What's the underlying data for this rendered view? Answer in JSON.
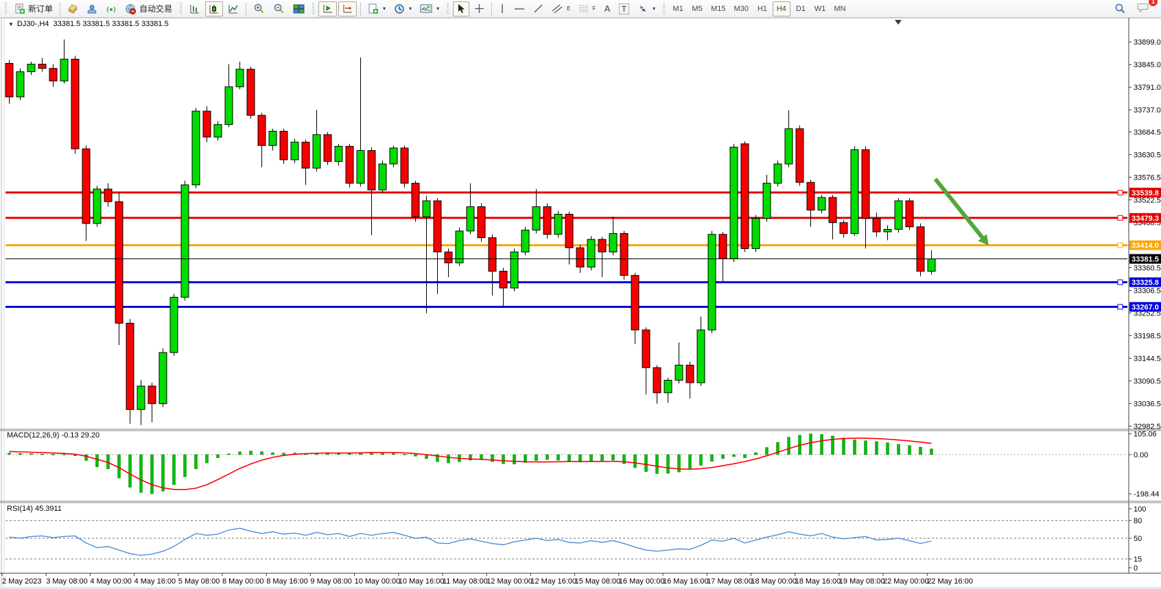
{
  "toolbar": {
    "new_order": "新订单",
    "autotrading": "自动交易",
    "timeframes": [
      "M1",
      "M5",
      "M15",
      "M30",
      "H1",
      "H4",
      "D1",
      "W1",
      "MN"
    ],
    "active_timeframe": "H4",
    "letters": {
      "channel": "E",
      "fibo": "F",
      "text": "A",
      "label": "T"
    },
    "notification_badge": "1"
  },
  "chart": {
    "menu_icon": "▼",
    "title": "DJ30-,H4  33381.5 33381.5 33381.5 33381.5"
  },
  "price_axis": {
    "ticks": [
      "33899.0",
      "33845.0",
      "33791.0",
      "33737.0",
      "33684.5",
      "33630.5",
      "33576.5",
      "33522.5",
      "33468.5",
      "33414.5",
      "33360.5",
      "33306.5",
      "33252.5",
      "33198.5",
      "33144.5",
      "33090.5",
      "33036.5",
      "32982.5"
    ]
  },
  "lines": {
    "levels": [
      {
        "price": 33539.8,
        "label": "33539.8",
        "color": "#e60000",
        "width": 3
      },
      {
        "price": 33479.3,
        "label": "33479.3",
        "color": "#e60000",
        "width": 3
      },
      {
        "price": 33414.0,
        "label": "33414.0",
        "color": "#ffa500",
        "width": 3
      },
      {
        "price": 33325.8,
        "label": "33325.8",
        "color": "#0000dd",
        "width": 3
      },
      {
        "price": 33267.0,
        "label": "33267.0",
        "color": "#0000dd",
        "width": 3
      }
    ],
    "current": {
      "price": 33381.5,
      "label": "33381.5",
      "color": "#000000",
      "width": 1
    }
  },
  "indicators": {
    "macd": {
      "text": "MACD(12,26,9) -0.13 29.20",
      "ticks": [
        {
          "v": 105.06,
          "label": "105.06",
          "dashed": false
        },
        {
          "v": 0,
          "label": "0.00",
          "dashed": true
        },
        {
          "v": -198.44,
          "label": "-198.44",
          "dashed": false
        }
      ]
    },
    "rsi": {
      "text": "RSI(14) 45.3911",
      "ticks": [
        {
          "v": 100,
          "label": "100",
          "dashed": false
        },
        {
          "v": 80,
          "label": "80",
          "dashed": true
        },
        {
          "v": 50,
          "label": "50",
          "dashed": true
        },
        {
          "v": 15,
          "label": "15",
          "dashed": true
        },
        {
          "v": 0,
          "label": "0",
          "dashed": false
        }
      ]
    }
  },
  "time_axis": {
    "labels": [
      "2 May 2023",
      "3 May 08:00",
      "4 May 00:00",
      "4 May 16:00",
      "5 May 08:00",
      "8 May 00:00",
      "8 May 16:00",
      "9 May 08:00",
      "10 May 00:00",
      "10 May 16:00",
      "11 May 08:00",
      "12 May 00:00",
      "12 May 16:00",
      "15 May 08:00",
      "16 May 00:00",
      "16 May 16:00",
      "17 May 08:00",
      "18 May 00:00",
      "18 May 16:00",
      "19 May 08:00",
      "22 May 00:00",
      "22 May 16:00"
    ]
  },
  "annotation": {
    "type": "arrow-down-right",
    "color": "#55a63c",
    "from": [
      1363,
      261
    ],
    "to": [
      1441,
      358
    ]
  },
  "chart_data": {
    "type": "candlestick",
    "symbol": "DJ30-",
    "period": "H4",
    "price_range_visible": [
      32982.5,
      33899.0
    ],
    "ohlc": [
      [
        33848,
        33856,
        33752,
        33768
      ],
      [
        33768,
        33836,
        33760,
        33828
      ],
      [
        33828,
        33852,
        33820,
        33846
      ],
      [
        33846,
        33861,
        33828,
        33836
      ],
      [
        33836,
        33846,
        33792,
        33806
      ],
      [
        33806,
        33905,
        33800,
        33858
      ],
      [
        33858,
        33866,
        33632,
        33644
      ],
      [
        33644,
        33652,
        33424,
        33466
      ],
      [
        33466,
        33556,
        33458,
        33548
      ],
      [
        33548,
        33562,
        33506,
        33518
      ],
      [
        33518,
        33540,
        33176,
        33228
      ],
      [
        33228,
        33238,
        32988,
        33022
      ],
      [
        33022,
        33092,
        32985,
        33078
      ],
      [
        33078,
        33086,
        32992,
        33036
      ],
      [
        33036,
        33168,
        33028,
        33158
      ],
      [
        33158,
        33298,
        33150,
        33290
      ],
      [
        33290,
        33568,
        33282,
        33558
      ],
      [
        33558,
        33742,
        33550,
        33734
      ],
      [
        33734,
        33746,
        33660,
        33672
      ],
      [
        33672,
        33710,
        33664,
        33702
      ],
      [
        33702,
        33846,
        33696,
        33792
      ],
      [
        33792,
        33852,
        33786,
        33834
      ],
      [
        33834,
        33840,
        33716,
        33724
      ],
      [
        33724,
        33730,
        33600,
        33652
      ],
      [
        33652,
        33692,
        33640,
        33686
      ],
      [
        33686,
        33692,
        33608,
        33618
      ],
      [
        33618,
        33668,
        33610,
        33660
      ],
      [
        33660,
        33666,
        33558,
        33598
      ],
      [
        33598,
        33737,
        33590,
        33678
      ],
      [
        33678,
        33684,
        33606,
        33614
      ],
      [
        33614,
        33656,
        33604,
        33650
      ],
      [
        33650,
        33656,
        33552,
        33562
      ],
      [
        33562,
        33862,
        33554,
        33640
      ],
      [
        33640,
        33648,
        33438,
        33546
      ],
      [
        33546,
        33616,
        33538,
        33608
      ],
      [
        33608,
        33652,
        33600,
        33646
      ],
      [
        33646,
        33652,
        33552,
        33562
      ],
      [
        33562,
        33568,
        33470,
        33482
      ],
      [
        33482,
        33532,
        33252,
        33520
      ],
      [
        33520,
        33526,
        33298,
        33398
      ],
      [
        33398,
        33406,
        33338,
        33372
      ],
      [
        33372,
        33456,
        33364,
        33448
      ],
      [
        33448,
        33562,
        33440,
        33506
      ],
      [
        33506,
        33514,
        33422,
        33432
      ],
      [
        33432,
        33440,
        33294,
        33352
      ],
      [
        33352,
        33360,
        33268,
        33312
      ],
      [
        33312,
        33406,
        33304,
        33398
      ],
      [
        33398,
        33458,
        33390,
        33450
      ],
      [
        33450,
        33548,
        33442,
        33506
      ],
      [
        33506,
        33514,
        33430,
        33440
      ],
      [
        33440,
        33496,
        33432,
        33488
      ],
      [
        33488,
        33494,
        33368,
        33408
      ],
      [
        33408,
        33416,
        33348,
        33362
      ],
      [
        33362,
        33436,
        33354,
        33428
      ],
      [
        33428,
        33434,
        33338,
        33398
      ],
      [
        33398,
        33482,
        33390,
        33442
      ],
      [
        33442,
        33448,
        33332,
        33342
      ],
      [
        33342,
        33348,
        33178,
        33212
      ],
      [
        33212,
        33218,
        33058,
        33122
      ],
      [
        33122,
        33128,
        33036,
        33062
      ],
      [
        33062,
        33098,
        33038,
        33092
      ],
      [
        33092,
        33182,
        33084,
        33128
      ],
      [
        33128,
        33136,
        33048,
        33086
      ],
      [
        33086,
        33244,
        33078,
        33212
      ],
      [
        33212,
        33448,
        33204,
        33440
      ],
      [
        33440,
        33446,
        33328,
        33382
      ],
      [
        33382,
        33656,
        33374,
        33648
      ],
      [
        33656,
        33662,
        33398,
        33406
      ],
      [
        33406,
        33486,
        33398,
        33478
      ],
      [
        33478,
        33582,
        33470,
        33562
      ],
      [
        33562,
        33616,
        33554,
        33608
      ],
      [
        33608,
        33736,
        33600,
        33692
      ],
      [
        33692,
        33700,
        33556,
        33564
      ],
      [
        33564,
        33570,
        33458,
        33498
      ],
      [
        33498,
        33534,
        33490,
        33528
      ],
      [
        33528,
        33534,
        33428,
        33468
      ],
      [
        33468,
        33474,
        33432,
        33442
      ],
      [
        33442,
        33650,
        33436,
        33642
      ],
      [
        33642,
        33650,
        33406,
        33478
      ],
      [
        33478,
        33492,
        33434,
        33446
      ],
      [
        33446,
        33462,
        33426,
        33452
      ],
      [
        33452,
        33526,
        33444,
        33520
      ],
      [
        33520,
        33526,
        33450,
        33458
      ],
      [
        33458,
        33466,
        33340,
        33352
      ],
      [
        33352,
        33402,
        33344,
        33381.5
      ]
    ],
    "macd_histogram": [
      8,
      6,
      5,
      3,
      2,
      2,
      -6,
      -30,
      -62,
      -72,
      -118,
      -165,
      -192,
      -198,
      -185,
      -152,
      -112,
      -72,
      -42,
      -16,
      4,
      14,
      18,
      15,
      10,
      8,
      8,
      5,
      8,
      10,
      8,
      5,
      9,
      12,
      10,
      8,
      2,
      -8,
      -20,
      -36,
      -42,
      -36,
      -28,
      -26,
      -36,
      -46,
      -48,
      -40,
      -30,
      -25,
      -28,
      -36,
      -38,
      -34,
      -30,
      -28,
      -46,
      -66,
      -86,
      -96,
      -95,
      -88,
      -74,
      -54,
      -34,
      -20,
      -10,
      -16,
      10,
      36,
      62,
      88,
      98,
      105,
      102,
      94,
      84,
      75,
      70,
      66,
      60,
      52,
      46,
      38,
      29
    ],
    "macd_signal": [
      16,
      14,
      12,
      10,
      8,
      6,
      2,
      -8,
      -24,
      -40,
      -66,
      -98,
      -128,
      -152,
      -168,
      -176,
      -177,
      -170,
      -152,
      -126,
      -98,
      -70,
      -47,
      -28,
      -14,
      -4,
      2,
      5,
      7,
      8,
      8,
      8,
      9,
      10,
      10,
      10,
      9,
      5,
      0,
      -7,
      -14,
      -19,
      -22,
      -24,
      -27,
      -31,
      -34,
      -36,
      -37,
      -37,
      -36,
      -35,
      -35,
      -35,
      -35,
      -34,
      -36,
      -42,
      -50,
      -59,
      -67,
      -72,
      -74,
      -71,
      -65,
      -56,
      -46,
      -35,
      -22,
      -6,
      12,
      30,
      47,
      60,
      70,
      77,
      81,
      83,
      83,
      81,
      78,
      74,
      69,
      63,
      57
    ],
    "rsi": [
      52,
      50,
      53,
      54,
      51,
      53,
      54,
      42,
      34,
      36,
      30,
      24,
      21,
      23,
      28,
      36,
      48,
      58,
      55,
      57,
      64,
      67,
      62,
      58,
      61,
      57,
      59,
      55,
      60,
      56,
      58,
      53,
      58,
      55,
      58,
      60,
      55,
      50,
      52,
      42,
      41,
      46,
      49,
      45,
      41,
      39,
      44,
      47,
      50,
      46,
      48,
      43,
      42,
      46,
      43,
      46,
      41,
      35,
      30,
      28,
      30,
      32,
      31,
      38,
      47,
      45,
      50,
      42,
      47,
      52,
      56,
      61,
      57,
      54,
      58,
      52,
      49,
      51,
      53,
      47,
      48,
      50,
      46,
      41,
      45.39
    ]
  },
  "colors": {
    "bull": "#00dc00",
    "bear": "#f60000",
    "outline": "#000000",
    "macd_hist": "#00c000",
    "macd_signal": "#ff0000",
    "rsi_line": "#4a90d9",
    "axis_line": "#3c3c3c",
    "splitter": "#8a8a8a",
    "arrow_green": "#55a63c"
  }
}
